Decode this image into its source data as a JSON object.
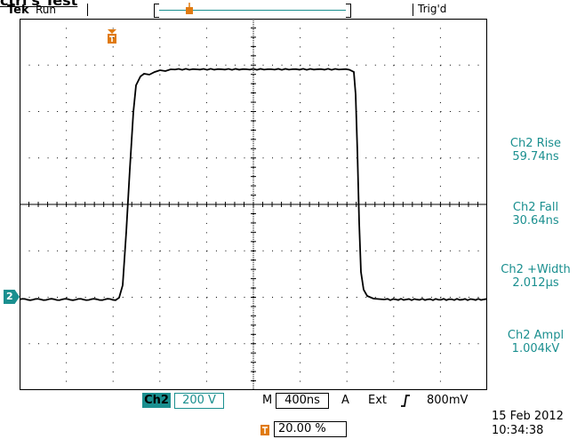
{
  "title": "ctrl's Test",
  "brand": "Tek",
  "acq_status": "Run",
  "trigger_state": "Trig'd",
  "measurements": [
    {
      "label": "Ch2 Rise",
      "value": "59.74ns"
    },
    {
      "label": "Ch2 Fall",
      "value": "30.64ns"
    },
    {
      "label": "Ch2 +Width",
      "value": "2.012µs"
    },
    {
      "label": "Ch2 Ampl",
      "value": "1.004kV"
    }
  ],
  "channel": {
    "marker": "2",
    "badge": "Ch2",
    "volts_per_div": "200 V"
  },
  "timebase": {
    "label": "M",
    "time_per_div": "400ns"
  },
  "trigger": {
    "mode": "A",
    "source": "Ext",
    "level": "800mV",
    "position": "20.00 %"
  },
  "datetime": {
    "date": "15 Feb  2012",
    "time": "10:34:38"
  },
  "colors": {
    "accent": "#1a8f8f",
    "trace": "#000000",
    "grid": "#000000"
  },
  "icons": {
    "trigger_marker": "trigger-marker-icon",
    "slope": "rising-edge-icon"
  }
}
